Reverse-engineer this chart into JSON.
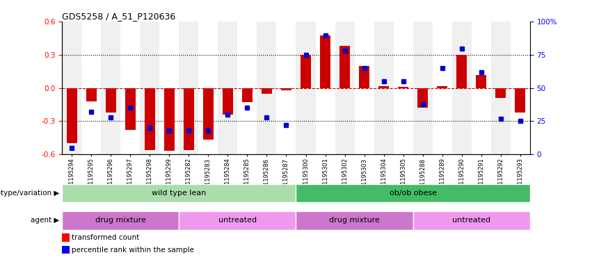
{
  "title": "GDS5258 / A_51_P120636",
  "samples": [
    "GSM1195294",
    "GSM1195295",
    "GSM1195296",
    "GSM1195297",
    "GSM1195298",
    "GSM1195299",
    "GSM1195282",
    "GSM1195283",
    "GSM1195284",
    "GSM1195285",
    "GSM1195286",
    "GSM1195287",
    "GSM1195300",
    "GSM1195301",
    "GSM1195302",
    "GSM1195303",
    "GSM1195304",
    "GSM1195305",
    "GSM1195288",
    "GSM1195289",
    "GSM1195290",
    "GSM1195291",
    "GSM1195292",
    "GSM1195293"
  ],
  "red_values": [
    -0.5,
    -0.12,
    -0.22,
    -0.38,
    -0.56,
    -0.57,
    -0.56,
    -0.47,
    -0.24,
    -0.13,
    -0.05,
    -0.02,
    0.3,
    0.48,
    0.38,
    0.2,
    0.02,
    0.01,
    -0.18,
    0.02,
    0.3,
    0.12,
    -0.09,
    -0.22
  ],
  "blue_percentiles": [
    5,
    32,
    28,
    35,
    20,
    18,
    18,
    18,
    30,
    35,
    28,
    22,
    75,
    90,
    78,
    65,
    55,
    55,
    38,
    65,
    80,
    62,
    27,
    25
  ],
  "genotype_groups": [
    {
      "label": "wild type lean",
      "start": 0,
      "end": 12,
      "color": "#aaddaa"
    },
    {
      "label": "ob/ob obese",
      "start": 12,
      "end": 24,
      "color": "#44bb66"
    }
  ],
  "agent_groups": [
    {
      "label": "drug mixture",
      "start": 0,
      "end": 6,
      "color": "#cc77cc"
    },
    {
      "label": "untreated",
      "start": 6,
      "end": 12,
      "color": "#ee99ee"
    },
    {
      "label": "drug mixture",
      "start": 12,
      "end": 18,
      "color": "#cc77cc"
    },
    {
      "label": "untreated",
      "start": 18,
      "end": 24,
      "color": "#ee99ee"
    }
  ],
  "ylim": [
    -0.6,
    0.6
  ],
  "yticks_left": [
    -0.6,
    -0.3,
    0.0,
    0.3,
    0.6
  ],
  "yticks_right": [
    0,
    25,
    50,
    75,
    100
  ],
  "bar_color": "#cc0000",
  "dot_color": "#0000cc",
  "hline_color": "#cc0000",
  "dotline_y": [
    0.3,
    -0.3
  ],
  "background_color": "#ffffff",
  "col_bg_even": "#f0f0f0",
  "col_bg_odd": "#ffffff"
}
